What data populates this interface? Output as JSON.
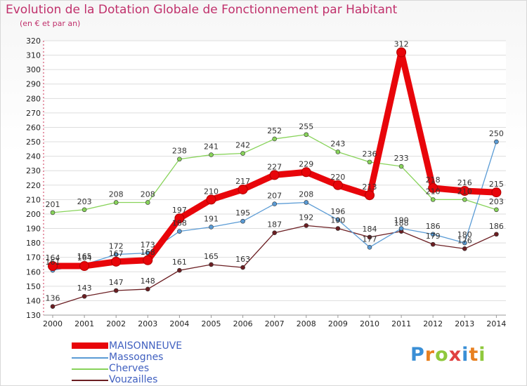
{
  "chart_data": {
    "type": "line",
    "title": "Evolution de la Dotation Globale de Fonctionnement par Habitant",
    "subtitle": "(en € et par an)",
    "xlabel": "",
    "ylabel": "",
    "categories": [
      "2000",
      "2001",
      "2002",
      "2003",
      "2004",
      "2005",
      "2006",
      "2007",
      "2008",
      "2009",
      "2010",
      "2011",
      "2012",
      "2013",
      "2014"
    ],
    "ylim": [
      130,
      320
    ],
    "yticks": [
      130,
      140,
      150,
      160,
      170,
      180,
      190,
      200,
      210,
      220,
      230,
      240,
      250,
      260,
      270,
      280,
      290,
      300,
      310,
      320
    ],
    "series": [
      {
        "name": "MAISONNEUVE",
        "color": "#e8050a",
        "values": [
          164,
          164,
          167,
          168,
          197,
          210,
          217,
          227,
          229,
          220,
          213,
          312,
          218,
          216,
          215
        ]
      },
      {
        "name": "Massognes",
        "color": "#5a9bd5",
        "values": [
          161,
          165,
          172,
          173,
          188,
          191,
          195,
          207,
          208,
          196,
          177,
          190,
          186,
          180,
          250
        ]
      },
      {
        "name": "Cherves",
        "color": "#88d35a",
        "values": [
          201,
          203,
          208,
          208,
          238,
          241,
          242,
          252,
          255,
          243,
          236,
          233,
          210,
          210,
          203
        ]
      },
      {
        "name": "Vouzailles",
        "color": "#6b1e22",
        "values": [
          136,
          143,
          147,
          148,
          161,
          165,
          163,
          187,
          192,
          190,
          184,
          188,
          179,
          176,
          186
        ]
      }
    ]
  },
  "legend": {
    "items": [
      {
        "name": "MAISONNEUVE",
        "color": "#e8050a"
      },
      {
        "name": "Massognes",
        "color": "#5a9bd5"
      },
      {
        "name": "Cherves",
        "color": "#88d35a"
      },
      {
        "name": "Vouzailles",
        "color": "#6b1e22"
      }
    ]
  },
  "logo": {
    "text": "Proxiti"
  }
}
